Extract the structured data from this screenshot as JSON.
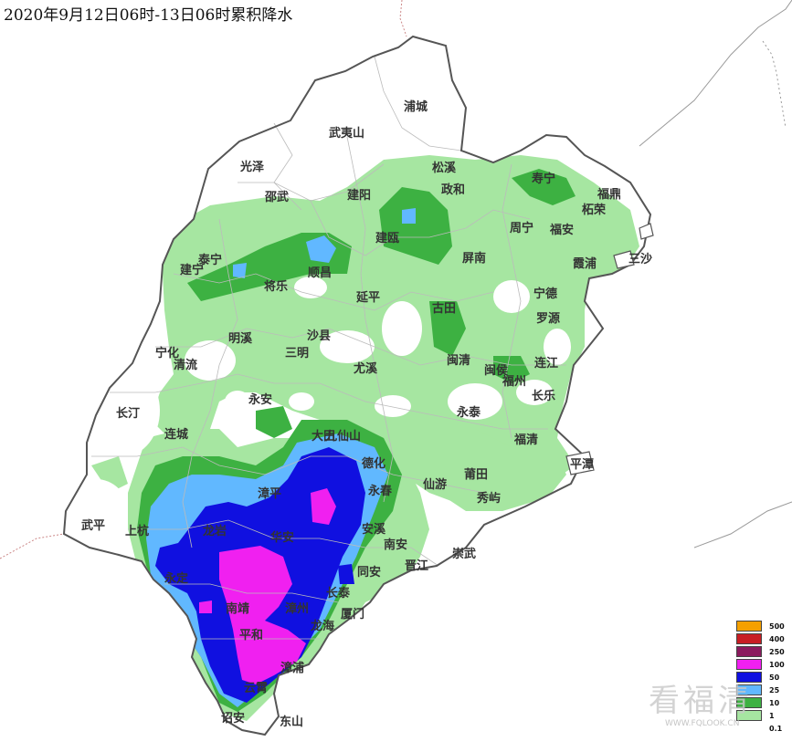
{
  "title": "2020年9月12日06时-13日06时累积降水",
  "colors": {
    "l1": "#a6e6a1",
    "l10": "#3db142",
    "l25": "#61b8ff",
    "l50": "#1010e0",
    "l100": "#f020f0",
    "l250": "#8b1a5e",
    "l400": "#c81e24",
    "l500": "#f5a000",
    "border": "#555555",
    "sea": "#ffffff"
  },
  "cities": [
    "浦城",
    "武夷山",
    "光泽",
    "松溪",
    "政和",
    "寿宁",
    "福鼎",
    "邵武",
    "建阳",
    "柘荣",
    "周宁",
    "福安",
    "建宁",
    "泰宁",
    "建瓯",
    "顺昌",
    "屏南",
    "霞浦",
    "三沙",
    "将乐",
    "宁德",
    "延平",
    "古田",
    "罗源",
    "宁化",
    "明溪",
    "沙县",
    "三明",
    "闽清",
    "闽侯",
    "连江",
    "清流",
    "福州",
    "尤溪",
    "长乐",
    "长汀",
    "永安",
    "永泰",
    "福清",
    "连城",
    "大田",
    "九仙山",
    "德化",
    "平潭",
    "莆田",
    "仙游",
    "永春",
    "漳平",
    "秀屿",
    "武平",
    "上杭",
    "龙岩",
    "华安",
    "安溪",
    "南安",
    "崇武",
    "永定",
    "晋江",
    "同安",
    "长泰",
    "南靖",
    "漳州",
    "厦门",
    "平和",
    "龙海",
    "漳浦",
    "云霄",
    "诏安",
    "东山"
  ],
  "legend": {
    "levels": [
      "500",
      "400",
      "250",
      "100",
      "50",
      "25",
      "10",
      "1",
      "0.1"
    ]
  },
  "watermark": {
    "text": "看福清",
    "url": "WWW.FQLOOK.CN"
  }
}
